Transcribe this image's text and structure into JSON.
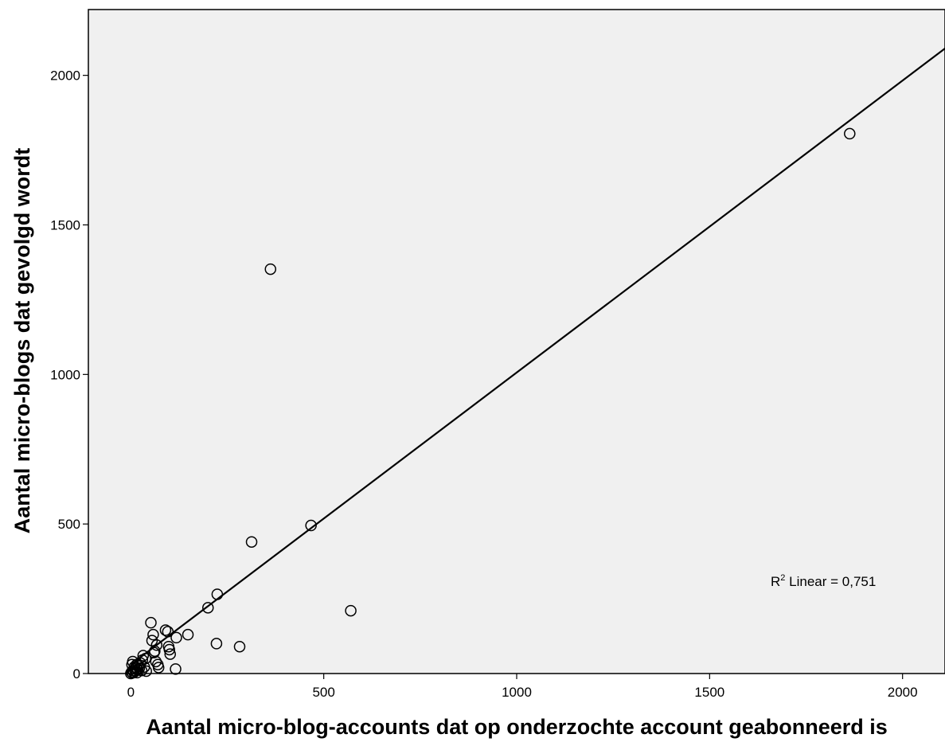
{
  "chart_data": {
    "type": "scatter",
    "title": "",
    "xlabel": "Aantal micro-blog-accounts dat op onderzochte account geabonneerd is",
    "ylabel": "Aantal micro-blogs dat gevolgd wordt",
    "xlim": [
      -110,
      2110
    ],
    "ylim": [
      0,
      2220
    ],
    "xticks": [
      0,
      500,
      1000,
      1500,
      2000
    ],
    "yticks": [
      0,
      500,
      1000,
      1500,
      2000
    ],
    "grid": false,
    "background": "#f0f0f0",
    "marker_color": "#000000",
    "points": [
      {
        "x": 0,
        "y": 0
      },
      {
        "x": 2,
        "y": 5
      },
      {
        "x": 4,
        "y": 2
      },
      {
        "x": 6,
        "y": 10
      },
      {
        "x": 8,
        "y": 4
      },
      {
        "x": 10,
        "y": 15
      },
      {
        "x": 12,
        "y": 8
      },
      {
        "x": 14,
        "y": 20
      },
      {
        "x": 16,
        "y": 3
      },
      {
        "x": 18,
        "y": 12
      },
      {
        "x": 20,
        "y": 25
      },
      {
        "x": 3,
        "y": 30
      },
      {
        "x": 5,
        "y": 40
      },
      {
        "x": 22,
        "y": 18
      },
      {
        "x": 25,
        "y": 35
      },
      {
        "x": 28,
        "y": 10
      },
      {
        "x": 30,
        "y": 45
      },
      {
        "x": 32,
        "y": 60
      },
      {
        "x": 35,
        "y": 22
      },
      {
        "x": 38,
        "y": 50
      },
      {
        "x": 40,
        "y": 8
      },
      {
        "x": 15,
        "y": 30
      },
      {
        "x": 9,
        "y": 22
      },
      {
        "x": 52,
        "y": 170
      },
      {
        "x": 55,
        "y": 110
      },
      {
        "x": 58,
        "y": 130
      },
      {
        "x": 60,
        "y": 70
      },
      {
        "x": 62,
        "y": 75
      },
      {
        "x": 65,
        "y": 40
      },
      {
        "x": 67,
        "y": 95
      },
      {
        "x": 70,
        "y": 30
      },
      {
        "x": 72,
        "y": 20
      },
      {
        "x": 90,
        "y": 145
      },
      {
        "x": 96,
        "y": 140
      },
      {
        "x": 98,
        "y": 90
      },
      {
        "x": 100,
        "y": 80
      },
      {
        "x": 102,
        "y": 65
      },
      {
        "x": 116,
        "y": 15
      },
      {
        "x": 118,
        "y": 120
      },
      {
        "x": 148,
        "y": 130
      },
      {
        "x": 200,
        "y": 220
      },
      {
        "x": 222,
        "y": 100
      },
      {
        "x": 224,
        "y": 265
      },
      {
        "x": 282,
        "y": 90
      },
      {
        "x": 313,
        "y": 440
      },
      {
        "x": 362,
        "y": 1352
      },
      {
        "x": 467,
        "y": 495
      },
      {
        "x": 570,
        "y": 210
      },
      {
        "x": 1863,
        "y": 1805
      }
    ],
    "fit_line": {
      "type": "linear",
      "start": [
        0,
        30
      ],
      "end": [
        2110,
        2090
      ]
    },
    "annotation": {
      "prefix": "R",
      "superscript": "2",
      "text": " Linear = 0,751"
    }
  }
}
